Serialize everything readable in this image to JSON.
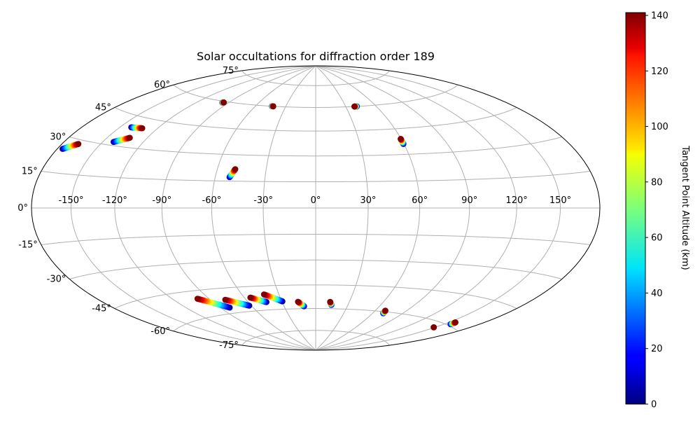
{
  "chart_data": {
    "type": "scatter",
    "projection": "hammer",
    "title": "Solar occultations for diffraction order 189",
    "xlabel": "",
    "ylabel": "",
    "lon_range": [
      -180,
      180
    ],
    "lat_range": [
      -90,
      90
    ],
    "grid": true,
    "lon_ticks": [
      -150,
      -120,
      -90,
      -60,
      -30,
      0,
      30,
      60,
      90,
      120,
      150
    ],
    "lon_tick_labels": [
      "-150°",
      "-120°",
      "-90°",
      "-60°",
      "-30°",
      "0°",
      "30°",
      "60°",
      "90°",
      "120°",
      "150°"
    ],
    "lat_ticks": [
      75,
      60,
      45,
      30,
      15,
      0,
      -15,
      -30,
      -45,
      -60,
      -75
    ],
    "lat_tick_labels": [
      "75°",
      "60°",
      "45°",
      "30°",
      "15°",
      "0°",
      "-15°",
      "-30°",
      "-45°",
      "-60°",
      "-75°"
    ],
    "colorbar": {
      "label": "Tangent Point Altitude (km)",
      "range": [
        0,
        141
      ],
      "ticks": [
        0,
        20,
        40,
        60,
        80,
        100,
        120,
        140
      ],
      "tick_labels": [
        "0",
        "20",
        "40",
        "60",
        "80",
        "100",
        "120",
        "140"
      ],
      "colormap": "jet"
    },
    "tracks": [
      {
        "start": [
          -175.7,
          25.0
        ],
        "end": [
          -167.0,
          28.2
        ]
      },
      {
        "start": [
          -141.8,
          31.7
        ],
        "end": [
          -132.9,
          34.7
        ]
      },
      {
        "start": [
          -141.1,
          39.5
        ],
        "end": [
          -131.8,
          40.0
        ]
      },
      {
        "start": [
          -96.0,
          59.2
        ],
        "end": [
          -94.9,
          59.4
        ]
      },
      {
        "start": [
          -51.3,
          17.2
        ],
        "end": [
          -48.9,
          21.8
        ]
      },
      {
        "start": [
          -43.6,
          60.0
        ],
        "end": [
          -42.4,
          60.0
        ]
      },
      {
        "start": [
          41.1,
          60.0
        ],
        "end": [
          38.6,
          60.0
        ]
      },
      {
        "start": [
          59.7,
          36.0
        ],
        "end": [
          59.7,
          39.0
        ]
      },
      {
        "start": [
          -61.9,
          -56.5
        ],
        "end": [
          -77.6,
          -51.8
        ]
      },
      {
        "start": [
          -43.9,
          -55.0
        ],
        "end": [
          -55.0,
          -51.7
        ]
      },
      {
        "start": [
          -29.5,
          -55.0
        ],
        "end": [
          -42.1,
          -50.2
        ]
      },
      {
        "start": [
          -11.1,
          -58.5
        ],
        "end": [
          -15.8,
          -55.5
        ]
      },
      {
        "start": [
          14.6,
          -57.5
        ],
        "end": [
          12.9,
          -55.6
        ]
      },
      {
        "start": [
          70.8,
          -61.0
        ],
        "end": [
          69.8,
          -59.3
        ]
      },
      {
        "start": [
          -81.5,
          -56.5
        ],
        "end": [
          -99.5,
          -49.5
        ]
      },
      {
        "start": [
          148.8,
          -62.8
        ],
        "end": [
          148.8,
          -62.8
        ]
      },
      {
        "start": [
          155.9,
          -59.3
        ],
        "end": [
          155.9,
          -58.0
        ]
      }
    ]
  }
}
